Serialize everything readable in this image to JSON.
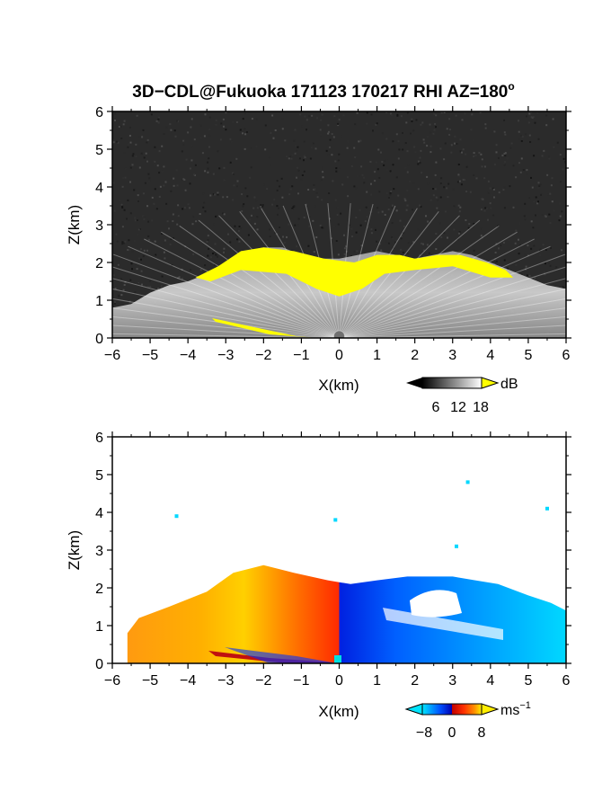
{
  "title": "3D−CDL@Fukuoka 171123 170217 RHI AZ=180",
  "title_suffix": "o",
  "chart_data": [
    {
      "type": "heatmap",
      "panel": "top",
      "xlabel": "X(km)",
      "ylabel": "Z(km)",
      "xlim": [
        -6,
        6
      ],
      "ylim": [
        0,
        6
      ],
      "xticks": [
        "−6",
        "−5",
        "−4",
        "−3",
        "−2",
        "−1",
        "0",
        "1",
        "2",
        "3",
        "4",
        "5",
        "6"
      ],
      "yticks": [
        "0",
        "1",
        "2",
        "3",
        "4",
        "5",
        "6"
      ],
      "background_color": "#2b2b2b",
      "colorbar": {
        "unit": "dB",
        "ticks": [
          "6",
          "12",
          "18"
        ],
        "over_color": "#ffff00",
        "palette": [
          "#000000",
          "#ffffff"
        ]
      },
      "echo_top_profile": [
        [
          -6.0,
          0.8
        ],
        [
          -5.5,
          0.9
        ],
        [
          -5.0,
          1.2
        ],
        [
          -4.5,
          1.4
        ],
        [
          -4.0,
          1.5
        ],
        [
          -3.5,
          1.7
        ],
        [
          -3.0,
          2.0
        ],
        [
          -2.5,
          2.3
        ],
        [
          -2.0,
          2.4
        ],
        [
          -1.5,
          2.4
        ],
        [
          -1.0,
          2.2
        ],
        [
          -0.5,
          2.1
        ],
        [
          0.0,
          2.1
        ],
        [
          0.5,
          2.2
        ],
        [
          1.0,
          2.3
        ],
        [
          1.5,
          2.2
        ],
        [
          2.0,
          2.1
        ],
        [
          2.5,
          2.2
        ],
        [
          3.0,
          2.3
        ],
        [
          3.5,
          2.2
        ],
        [
          4.0,
          2.0
        ],
        [
          4.5,
          1.8
        ],
        [
          5.0,
          1.6
        ],
        [
          5.5,
          1.4
        ],
        [
          6.0,
          1.3
        ]
      ],
      "high_reflectivity_region": [
        [
          -3.8,
          1.6
        ],
        [
          -3.2,
          1.9
        ],
        [
          -2.6,
          2.3
        ],
        [
          -2.0,
          2.4
        ],
        [
          -1.2,
          2.3
        ],
        [
          -0.4,
          2.1
        ],
        [
          0.4,
          2.0
        ],
        [
          1.0,
          2.2
        ],
        [
          1.6,
          2.2
        ],
        [
          2.0,
          2.1
        ],
        [
          2.6,
          2.2
        ],
        [
          3.2,
          2.2
        ],
        [
          3.9,
          2.0
        ],
        [
          4.4,
          1.8
        ],
        [
          4.6,
          1.6
        ],
        [
          4.0,
          1.6
        ],
        [
          3.0,
          1.9
        ],
        [
          2.0,
          1.8
        ],
        [
          1.2,
          1.7
        ],
        [
          0.6,
          1.3
        ],
        [
          0.0,
          1.1
        ],
        [
          -0.6,
          1.3
        ],
        [
          -1.4,
          1.7
        ],
        [
          -2.6,
          1.8
        ],
        [
          -3.4,
          1.5
        ]
      ]
    },
    {
      "type": "heatmap",
      "panel": "bottom",
      "xlabel": "X(km)",
      "ylabel": "Z(km)",
      "xlim": [
        -6,
        6
      ],
      "ylim": [
        0,
        6
      ],
      "xticks": [
        "−6",
        "−5",
        "−4",
        "−3",
        "−2",
        "−1",
        "0",
        "1",
        "2",
        "3",
        "4",
        "5",
        "6"
      ],
      "yticks": [
        "0",
        "1",
        "2",
        "3",
        "4",
        "5",
        "6"
      ],
      "colorbar": {
        "unit": "ms",
        "unit_exponent": "−1",
        "ticks": [
          "−8",
          "0",
          "8"
        ],
        "palette": [
          "#00e5ff",
          "#0050ff",
          "#0000c0",
          "#c00000",
          "#ff3000",
          "#ff9000",
          "#ffee00"
        ]
      },
      "velocity_sectors": [
        {
          "x_range": [
            -5.6,
            -3.5
          ],
          "velocity": 6
        },
        {
          "x_range": [
            -3.5,
            -2.0
          ],
          "velocity": 7
        },
        {
          "x_range": [
            -2.0,
            -0.2
          ],
          "velocity": 3
        },
        {
          "x_range": [
            -0.2,
            1.8
          ],
          "velocity": -4
        },
        {
          "x_range": [
            1.8,
            3.8
          ],
          "velocity": -6
        },
        {
          "x_range": [
            3.8,
            6.0
          ],
          "velocity": -8
        }
      ],
      "echo_top_profile": [
        [
          -5.6,
          0.8
        ],
        [
          -5.3,
          1.2
        ],
        [
          -4.5,
          1.5
        ],
        [
          -3.5,
          1.9
        ],
        [
          -2.8,
          2.4
        ],
        [
          -2.0,
          2.6
        ],
        [
          -1.2,
          2.4
        ],
        [
          -0.3,
          2.2
        ],
        [
          0.3,
          2.1
        ],
        [
          1.0,
          2.2
        ],
        [
          1.8,
          2.3
        ],
        [
          2.4,
          2.3
        ],
        [
          3.0,
          2.3
        ],
        [
          3.6,
          2.2
        ],
        [
          4.2,
          2.1
        ],
        [
          5.0,
          1.8
        ],
        [
          5.6,
          1.6
        ],
        [
          6.0,
          1.4
        ]
      ],
      "isolated_points": [
        [
          -4.3,
          3.9
        ],
        [
          -0.1,
          3.8
        ],
        [
          3.1,
          3.1
        ],
        [
          3.4,
          4.8
        ],
        [
          5.5,
          4.1
        ]
      ]
    }
  ]
}
